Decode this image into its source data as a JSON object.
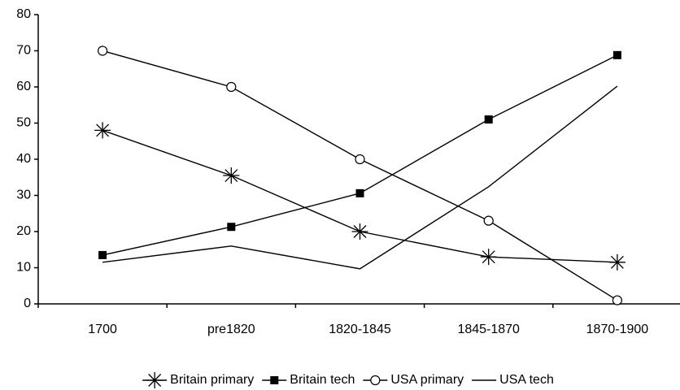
{
  "chart_data": {
    "type": "line",
    "categories": [
      "1700",
      "pre1820",
      "1820-1845",
      "1845-1870",
      "1870-1900"
    ],
    "series": [
      {
        "name": "Britain primary",
        "color": "#000000",
        "marker": "asterisk",
        "values": [
          48,
          35.5,
          20,
          13,
          11.5
        ]
      },
      {
        "name": "Britain tech",
        "color": "#000000",
        "marker": "square",
        "values": [
          13.5,
          21.3,
          30.6,
          51,
          68.8
        ]
      },
      {
        "name": "USA primary",
        "color": "#000000",
        "marker": "circle",
        "values": [
          70,
          60,
          40,
          23,
          1
        ]
      },
      {
        "name": "USA tech",
        "color": "#000000",
        "marker": "none",
        "values": [
          11.5,
          16,
          9.7,
          32.4,
          60.2
        ]
      }
    ],
    "ylim": [
      0,
      80
    ],
    "yticks": [
      0,
      10,
      20,
      30,
      40,
      50,
      60,
      70,
      80
    ],
    "grid": false,
    "legend": "bottom"
  }
}
